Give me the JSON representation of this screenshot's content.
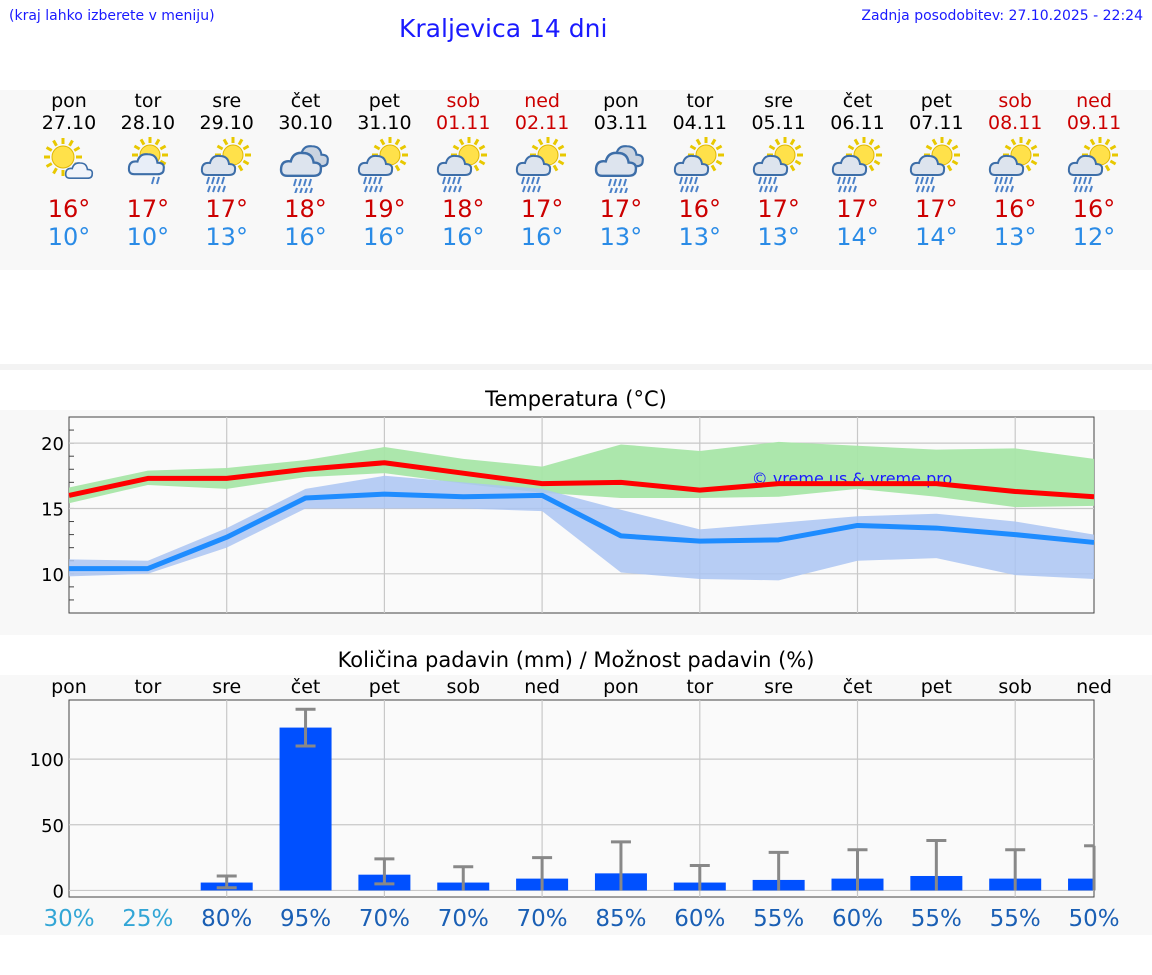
{
  "header": {
    "note": "(kraj lahko izberete v meniju)",
    "title": "Kraljevica 14 dni",
    "updated": "Zadnja posodobitev: 27.10.2025 - 22:24"
  },
  "days": [
    {
      "name": "pon",
      "date": "27.10",
      "icon": "sun-small-cloud-icon",
      "max": "16°",
      "min": "10°",
      "weekend": false
    },
    {
      "name": "tor",
      "date": "28.10",
      "icon": "sun-cloud-drizzle-icon",
      "max": "17°",
      "min": "10°",
      "weekend": false
    },
    {
      "name": "sre",
      "date": "29.10",
      "icon": "sun-cloud-rain-icon",
      "max": "17°",
      "min": "13°",
      "weekend": false
    },
    {
      "name": "čet",
      "date": "30.10",
      "icon": "heavy-cloud-rain-icon",
      "max": "18°",
      "min": "16°",
      "weekend": false
    },
    {
      "name": "pet",
      "date": "31.10",
      "icon": "sun-cloud-rain-icon",
      "max": "19°",
      "min": "16°",
      "weekend": false
    },
    {
      "name": "sob",
      "date": "01.11",
      "icon": "sun-cloud-rain-icon",
      "max": "18°",
      "min": "16°",
      "weekend": true
    },
    {
      "name": "ned",
      "date": "02.11",
      "icon": "sun-cloud-rain-icon",
      "max": "17°",
      "min": "16°",
      "weekend": true
    },
    {
      "name": "pon",
      "date": "03.11",
      "icon": "heavy-cloud-rain-icon",
      "max": "17°",
      "min": "13°",
      "weekend": false
    },
    {
      "name": "tor",
      "date": "04.11",
      "icon": "sun-cloud-rain-icon",
      "max": "16°",
      "min": "13°",
      "weekend": false
    },
    {
      "name": "sre",
      "date": "05.11",
      "icon": "sun-cloud-rain-icon",
      "max": "17°",
      "min": "13°",
      "weekend": false
    },
    {
      "name": "čet",
      "date": "06.11",
      "icon": "sun-cloud-rain-icon",
      "max": "17°",
      "min": "14°",
      "weekend": false
    },
    {
      "name": "pet",
      "date": "07.11",
      "icon": "sun-cloud-rain-icon",
      "max": "17°",
      "min": "14°",
      "weekend": false
    },
    {
      "name": "sob",
      "date": "08.11",
      "icon": "sun-cloud-rain-icon",
      "max": "16°",
      "min": "13°",
      "weekend": true
    },
    {
      "name": "ned",
      "date": "09.11",
      "icon": "sun-cloud-rain-icon",
      "max": "16°",
      "min": "12°",
      "weekend": true
    }
  ],
  "colors": {
    "max_line": "#ff0000",
    "min_line": "#1e8cff",
    "max_band": "#a8e6a8",
    "min_band": "#aac4f2",
    "bars": "#0050ff",
    "errorbars": "#888888",
    "watermark": "#1a1aff",
    "pct_low": "#33a6d6",
    "pct_high": "#1a5fb4"
  },
  "chart_data": [
    {
      "type": "line",
      "title": "Temperatura (°C)",
      "watermark": "© vreme.us & vreme.pro",
      "x": [
        0,
        1,
        2,
        3,
        4,
        5,
        6,
        7,
        8,
        9,
        10,
        11,
        12,
        13
      ],
      "ylim": [
        7,
        22
      ],
      "yticks": [
        10,
        15,
        20
      ],
      "grid": true,
      "series": [
        {
          "role": "max",
          "values": [
            16.0,
            17.3,
            17.3,
            18.0,
            18.5,
            17.7,
            16.9,
            17.0,
            16.4,
            16.9,
            16.9,
            16.9,
            16.3,
            15.9
          ]
        },
        {
          "role": "min",
          "values": [
            10.4,
            10.4,
            12.8,
            15.8,
            16.1,
            15.9,
            16.0,
            12.9,
            12.5,
            12.6,
            13.7,
            13.5,
            13.0,
            12.4
          ]
        }
      ],
      "bands": [
        {
          "role": "max",
          "upper": [
            16.6,
            17.9,
            18.1,
            18.7,
            19.7,
            18.8,
            18.2,
            19.9,
            19.4,
            20.1,
            19.8,
            19.5,
            19.6,
            18.8
          ],
          "lower": [
            15.4,
            16.8,
            16.5,
            17.4,
            17.7,
            16.9,
            16.2,
            15.8,
            15.8,
            15.9,
            16.5,
            15.9,
            15.1,
            15.2
          ]
        },
        {
          "role": "min",
          "upper": [
            11.1,
            11.0,
            13.5,
            16.5,
            17.5,
            17.0,
            16.5,
            14.9,
            13.4,
            13.9,
            14.4,
            14.6,
            14.0,
            13.0
          ],
          "lower": [
            9.8,
            10.0,
            12.0,
            15.0,
            15.0,
            15.0,
            14.8,
            10.1,
            9.6,
            9.5,
            11.0,
            11.2,
            9.9,
            9.6
          ]
        }
      ]
    },
    {
      "type": "bar",
      "title": "Količina padavin (mm) / Možnost padavin (%)",
      "categories": [
        "pon",
        "tor",
        "sre",
        "čet",
        "pet",
        "sob",
        "ned",
        "pon",
        "tor",
        "sre",
        "čet",
        "pet",
        "sob",
        "ned"
      ],
      "values": [
        0,
        0,
        6,
        124,
        12,
        6,
        9,
        13,
        6,
        8,
        9,
        11,
        9,
        9
      ],
      "error_low": [
        0,
        0,
        2,
        110,
        5,
        0,
        0,
        0,
        0,
        0,
        0,
        0,
        0,
        0
      ],
      "error_high": [
        0,
        0,
        11,
        138,
        24,
        18,
        25,
        37,
        19,
        29,
        31,
        38,
        31,
        34
      ],
      "ylim": [
        -5,
        145
      ],
      "yticks": [
        0,
        50,
        100
      ],
      "grid": true,
      "probability": [
        "30%",
        "25%",
        "80%",
        "95%",
        "70%",
        "70%",
        "70%",
        "85%",
        "60%",
        "55%",
        "60%",
        "55%",
        "55%",
        "50%"
      ]
    }
  ]
}
